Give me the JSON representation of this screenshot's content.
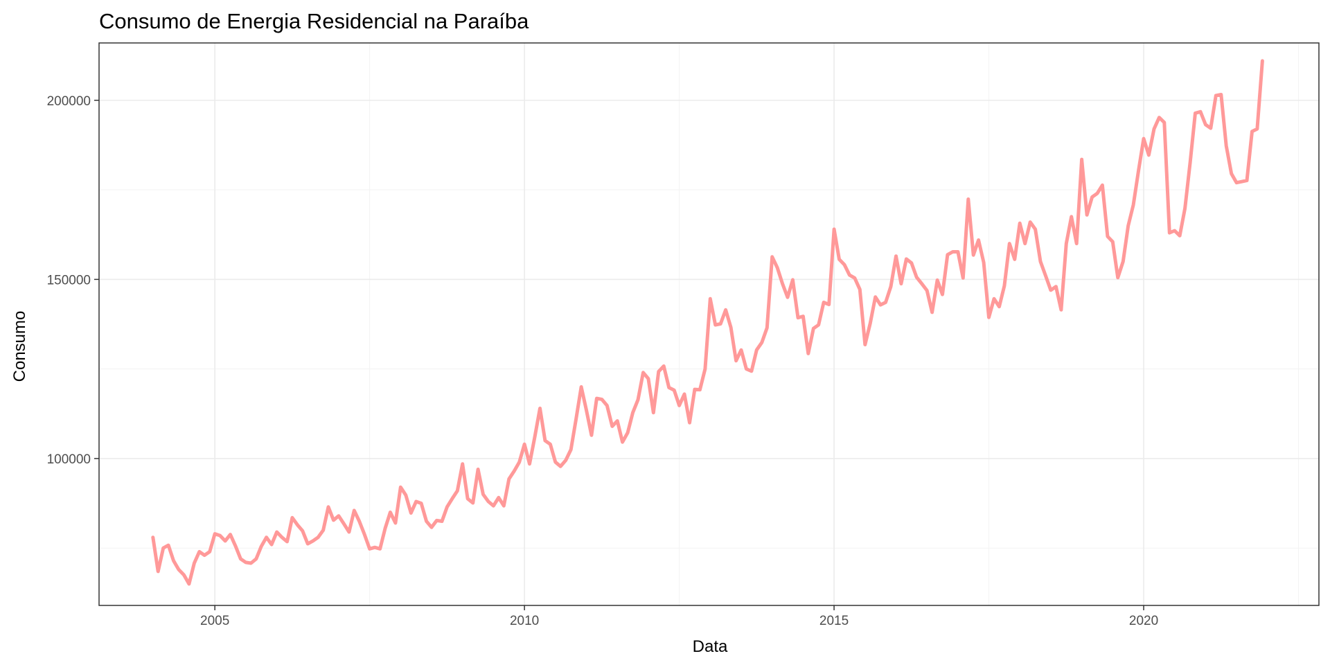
{
  "chart_data": {
    "type": "line",
    "title": "Consumo de Energia Residencial na Paraíba",
    "xlabel": "Data",
    "ylabel": "Consumo",
    "x_ticks": [
      "2005",
      "2010",
      "2015",
      "2020"
    ],
    "y_ticks": [
      "100000",
      "150000",
      "200000"
    ],
    "xlim": [
      2003.13,
      2022.83
    ],
    "ylim": [
      59000,
      216000
    ],
    "grid": true,
    "line_color": "#ff9999",
    "series": [
      {
        "x": [
          2004.0,
          2004.083,
          2004.167,
          2004.25,
          2004.333,
          2004.417,
          2004.5,
          2004.583,
          2004.667,
          2004.75,
          2004.833,
          2004.917,
          2005.0,
          2005.083,
          2005.167,
          2005.25,
          2005.333,
          2005.417,
          2005.5,
          2005.583,
          2005.667,
          2005.75,
          2005.833,
          2005.917,
          2006.0,
          2006.083,
          2006.167,
          2006.25,
          2006.333,
          2006.417,
          2006.5,
          2006.583,
          2006.667,
          2006.75,
          2006.833,
          2006.917,
          2007.0,
          2007.083,
          2007.167,
          2007.25,
          2007.333,
          2007.417,
          2007.5,
          2007.583,
          2007.667,
          2007.75,
          2007.833,
          2007.917,
          2008.0,
          2008.083,
          2008.167,
          2008.25,
          2008.333,
          2008.417,
          2008.5,
          2008.583,
          2008.667,
          2008.75,
          2008.833,
          2008.917,
          2009.0,
          2009.083,
          2009.167,
          2009.25,
          2009.333,
          2009.417,
          2009.5,
          2009.583,
          2009.667,
          2009.75,
          2009.833,
          2009.917,
          2010.0,
          2010.083,
          2010.167,
          2010.25,
          2010.333,
          2010.417,
          2010.5,
          2010.583,
          2010.667,
          2010.75,
          2010.833,
          2010.917,
          2011.0,
          2011.083,
          2011.167,
          2011.25,
          2011.333,
          2011.417,
          2011.5,
          2011.583,
          2011.667,
          2011.75,
          2011.833,
          2011.917,
          2012.0,
          2012.083,
          2012.167,
          2012.25,
          2012.333,
          2012.417,
          2012.5,
          2012.583,
          2012.667,
          2012.75,
          2012.833,
          2012.917,
          2013.0,
          2013.083,
          2013.167,
          2013.25,
          2013.333,
          2013.417,
          2013.5,
          2013.583,
          2013.667,
          2013.75,
          2013.833,
          2013.917,
          2014.0,
          2014.083,
          2014.167,
          2014.25,
          2014.333,
          2014.417,
          2014.5,
          2014.583,
          2014.667,
          2014.75,
          2014.833,
          2014.917,
          2015.0,
          2015.083,
          2015.167,
          2015.25,
          2015.333,
          2015.417,
          2015.5,
          2015.583,
          2015.667,
          2015.75,
          2015.833,
          2015.917,
          2016.0,
          2016.083,
          2016.167,
          2016.25,
          2016.333,
          2016.417,
          2016.5,
          2016.583,
          2016.667,
          2016.75,
          2016.833,
          2016.917,
          2017.0,
          2017.083,
          2017.167,
          2017.25,
          2017.333,
          2017.417,
          2017.5,
          2017.583,
          2017.667,
          2017.75,
          2017.833,
          2017.917,
          2018.0,
          2018.083,
          2018.167,
          2018.25,
          2018.333,
          2018.417,
          2018.5,
          2018.583,
          2018.667,
          2018.75,
          2018.833,
          2018.917,
          2019.0,
          2019.083,
          2019.167,
          2019.25,
          2019.333,
          2019.417,
          2019.5,
          2019.583,
          2019.667,
          2019.75,
          2019.833,
          2019.917,
          2020.0,
          2020.083,
          2020.167,
          2020.25,
          2020.333,
          2020.417,
          2020.5,
          2020.583,
          2020.667,
          2020.75,
          2020.833,
          2020.917,
          2021.0,
          2021.083,
          2021.167,
          2021.25,
          2021.333,
          2021.417,
          2021.5,
          2021.583,
          2021.667,
          2021.75,
          2021.833,
          2021.917
        ],
        "y": [
          78000,
          68500,
          75000,
          75800,
          71500,
          69000,
          67500,
          65000,
          70800,
          74000,
          73000,
          74000,
          79000,
          78500,
          77000,
          78800,
          75600,
          72000,
          71000,
          70800,
          72000,
          75500,
          78000,
          76000,
          79500,
          78000,
          76800,
          83500,
          81500,
          79800,
          76200,
          77000,
          78000,
          80000,
          86500,
          82800,
          84000,
          81800,
          79500,
          85500,
          82500,
          78800,
          74800,
          75200,
          74800,
          80500,
          85000,
          82000,
          92000,
          89800,
          84800,
          88000,
          87500,
          82500,
          80800,
          82700,
          82500,
          86500,
          88800,
          91000,
          98500,
          88800,
          87600,
          97000,
          90000,
          88000,
          86800,
          89100,
          86800,
          94300,
          96500,
          99000,
          104000,
          98500,
          106000,
          114000,
          105000,
          104000,
          99000,
          97800,
          99500,
          102500,
          111000,
          120000,
          113500,
          106500,
          116800,
          116500,
          114800,
          109000,
          110500,
          104600,
          107200,
          112800,
          116400,
          124000,
          122300,
          112800,
          124300,
          125800,
          119800,
          119100,
          114800,
          118000,
          110000,
          119300,
          119200,
          125000,
          144600,
          137300,
          137600,
          141500,
          136600,
          127300,
          130300,
          125000,
          124400,
          130300,
          132400,
          136500,
          156300,
          153300,
          148800,
          145000,
          149900,
          139300,
          139700,
          129300,
          136300,
          137300,
          143600,
          143000,
          164000,
          155600,
          154100,
          151200,
          150400,
          147200,
          131800,
          137700,
          145100,
          142900,
          143600,
          148000,
          156500,
          148800,
          155700,
          154600,
          150600,
          148800,
          146900,
          140800,
          149800,
          145800,
          156900,
          157700,
          157700,
          150400,
          172400,
          156800,
          161000,
          154700,
          139400,
          144600,
          142400,
          148200,
          160000,
          155600,
          165700,
          160000,
          166000,
          164000,
          155000,
          151000,
          147000,
          148000,
          141500,
          160000,
          167500,
          160000,
          183500,
          168000,
          173000,
          174000,
          176300,
          162000,
          160500,
          150500,
          155000,
          165000,
          170800,
          180400,
          189300,
          184700,
          192000,
          195200,
          193800,
          163000,
          163600,
          162200,
          169800,
          182600,
          196400,
          196800,
          193200,
          192200,
          201300,
          201600,
          187300,
          179500,
          177000,
          177300,
          177600,
          191300,
          192000,
          211000
        ]
      }
    ]
  }
}
